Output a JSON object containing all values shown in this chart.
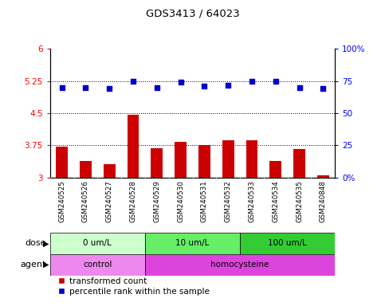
{
  "title": "GDS3413 / 64023",
  "samples": [
    "GSM240525",
    "GSM240526",
    "GSM240527",
    "GSM240528",
    "GSM240529",
    "GSM240530",
    "GSM240531",
    "GSM240532",
    "GSM240533",
    "GSM240534",
    "GSM240535",
    "GSM240848"
  ],
  "red_values": [
    3.72,
    3.38,
    3.32,
    4.46,
    3.68,
    3.84,
    3.75,
    3.86,
    3.86,
    3.38,
    3.66,
    3.05
  ],
  "blue_values": [
    70,
    70,
    69,
    75,
    70,
    74,
    71,
    72,
    75,
    75,
    70,
    69
  ],
  "ylim_left": [
    3.0,
    6.0
  ],
  "ylim_right": [
    0,
    100
  ],
  "yticks_left": [
    3.0,
    3.75,
    4.5,
    5.25,
    6.0
  ],
  "yticks_right": [
    0,
    25,
    50,
    75,
    100
  ],
  "ytick_labels_left": [
    "3",
    "3.75",
    "4.5",
    "5.25",
    "6"
  ],
  "ytick_labels_right": [
    "0",
    "25",
    "50",
    "75",
    "100%"
  ],
  "hlines": [
    3.75,
    4.5,
    5.25
  ],
  "dose_groups": [
    {
      "label": "0 um/L",
      "start": 0,
      "end": 4,
      "color": "#ccffcc"
    },
    {
      "label": "10 um/L",
      "start": 4,
      "end": 8,
      "color": "#66ee66"
    },
    {
      "label": "100 um/L",
      "start": 8,
      "end": 12,
      "color": "#33cc33"
    }
  ],
  "agent_groups": [
    {
      "label": "control",
      "start": 0,
      "end": 4,
      "color": "#ee88ee"
    },
    {
      "label": "homocysteine",
      "start": 4,
      "end": 12,
      "color": "#dd44dd"
    }
  ],
  "bar_color": "#cc0000",
  "dot_color": "#0000cc",
  "sample_bg": "#cccccc",
  "legend_red": "transformed count",
  "legend_blue": "percentile rank within the sample"
}
